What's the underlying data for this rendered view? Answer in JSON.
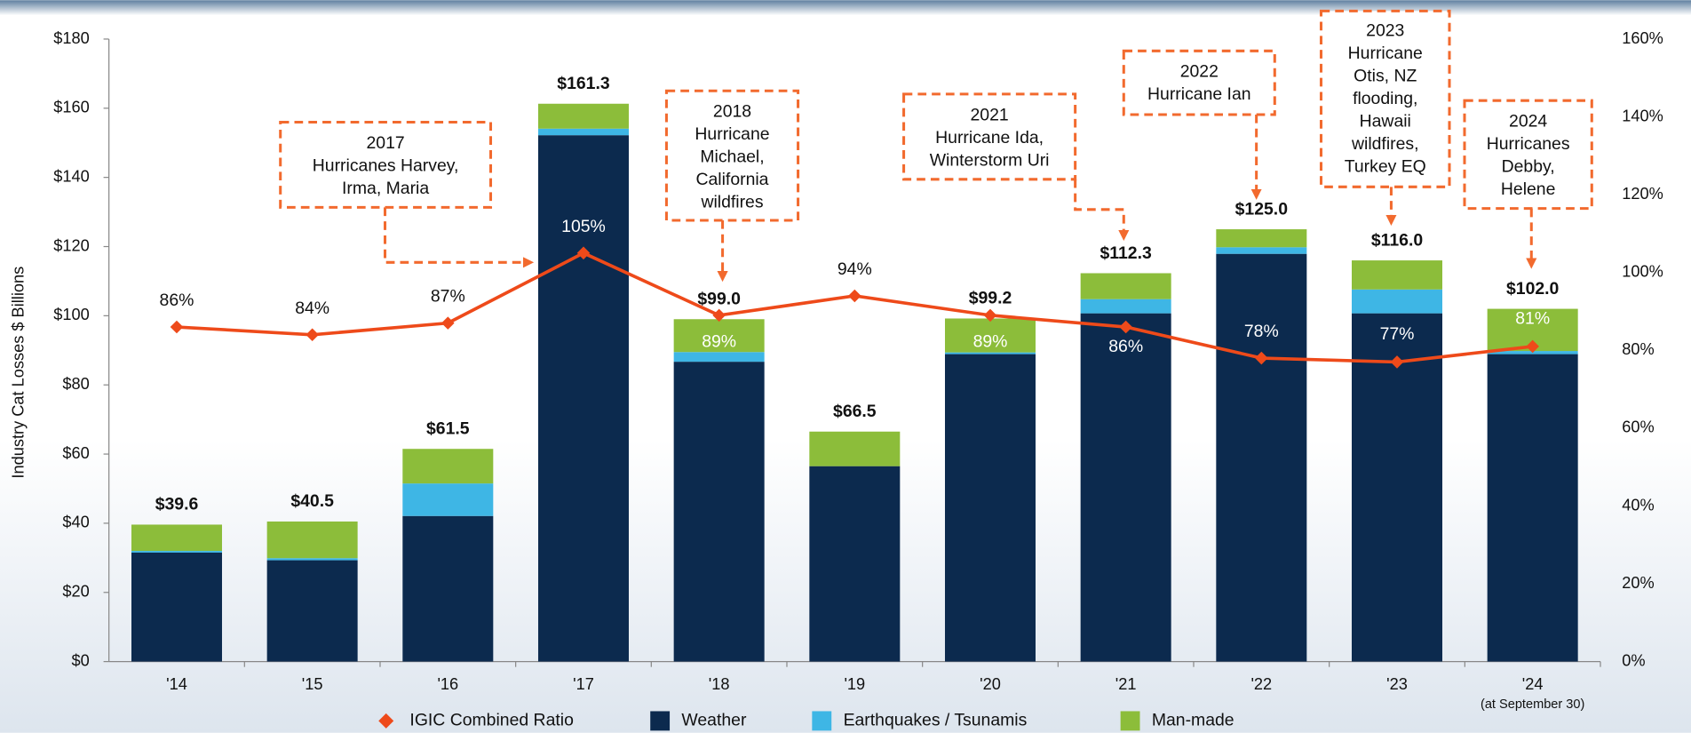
{
  "chart_data": {
    "type": "bar",
    "y_label": "Industry Cat Losses $ Billions",
    "categories": [
      "'14",
      "'15",
      "'16",
      "'17",
      "'18",
      "'19",
      "'20",
      "'21",
      "'22",
      "'23",
      "'24"
    ],
    "category_note": "(at September 30)",
    "series": [
      {
        "name": "Weather",
        "color": "#0c2a4e",
        "values": [
          31.5,
          29.3,
          42.1,
          152.2,
          86.7,
          56.5,
          88.9,
          100.7,
          117.9,
          100.7,
          88.9
        ]
      },
      {
        "name": "Earthquakes / Tsunamis",
        "color": "#3eb6e5",
        "values": [
          0.5,
          0.6,
          9.4,
          1.9,
          2.8,
          0,
          0.5,
          4.1,
          1.9,
          6.9,
          0.9
        ]
      },
      {
        "name": "Man-made",
        "color": "#8cbd3a",
        "values": [
          7.6,
          10.6,
          10.0,
          7.2,
          9.5,
          10.0,
          9.8,
          7.5,
          5.2,
          8.4,
          12.2
        ]
      },
      {
        "name": "IGIC Combined Ratio",
        "color": "#ee4a1a",
        "type": "line",
        "axis": "y2",
        "values": [
          86,
          84,
          87,
          105,
          89,
          94,
          89,
          86,
          78,
          77,
          81
        ],
        "value_labels": [
          "86%",
          "84%",
          "87%",
          "105%",
          "89%",
          "94%",
          "89%",
          "86%",
          "78%",
          "77%",
          "81%"
        ]
      }
    ],
    "total_labels": [
      "$39.6",
      "$40.5",
      "$61.5",
      "$161.3",
      "$99.0",
      "$66.5",
      "$99.2",
      "$112.3",
      "$125.0",
      "$116.0",
      "$102.0"
    ],
    "ylim": [
      0,
      180
    ],
    "yticks": [
      {
        "value": 0,
        "label": "$0"
      },
      {
        "value": 20,
        "label": "$20"
      },
      {
        "value": 40,
        "label": "$40"
      },
      {
        "value": 60,
        "label": "$60"
      },
      {
        "value": 80,
        "label": "$80"
      },
      {
        "value": 100,
        "label": "$100"
      },
      {
        "value": 120,
        "label": "$120"
      },
      {
        "value": 140,
        "label": "$140"
      },
      {
        "value": 160,
        "label": "$160"
      },
      {
        "value": 180,
        "label": "$180"
      }
    ],
    "y2lim": [
      0,
      160
    ],
    "y2ticks": [
      {
        "value": 0,
        "label": "0%"
      },
      {
        "value": 20,
        "label": "20%"
      },
      {
        "value": 40,
        "label": "40%"
      },
      {
        "value": 60,
        "label": "60%"
      },
      {
        "value": 80,
        "label": "80%"
      },
      {
        "value": 100,
        "label": "100%"
      },
      {
        "value": 120,
        "label": "120%"
      },
      {
        "value": 140,
        "label": "140%"
      },
      {
        "value": 160,
        "label": "160%"
      }
    ],
    "annotations": [
      {
        "lines": [
          "2017",
          "Hurricanes Harvey,",
          "Irma, Maria"
        ]
      },
      {
        "lines": [
          "2018",
          "Hurricane",
          "Michael,",
          "California",
          "wildfires"
        ]
      },
      {
        "lines": [
          "2021",
          "Hurricane Ida,",
          "Winterstorm Uri"
        ]
      },
      {
        "lines": [
          "2022",
          "Hurricane Ian"
        ]
      },
      {
        "lines": [
          "2023",
          "Hurricane",
          "Otis, NZ",
          "flooding,",
          "Hawaii",
          "wildfires,",
          "Turkey EQ"
        ]
      },
      {
        "lines": [
          "2024",
          "Hurricanes",
          "Debby,",
          "Helene"
        ]
      }
    ]
  }
}
